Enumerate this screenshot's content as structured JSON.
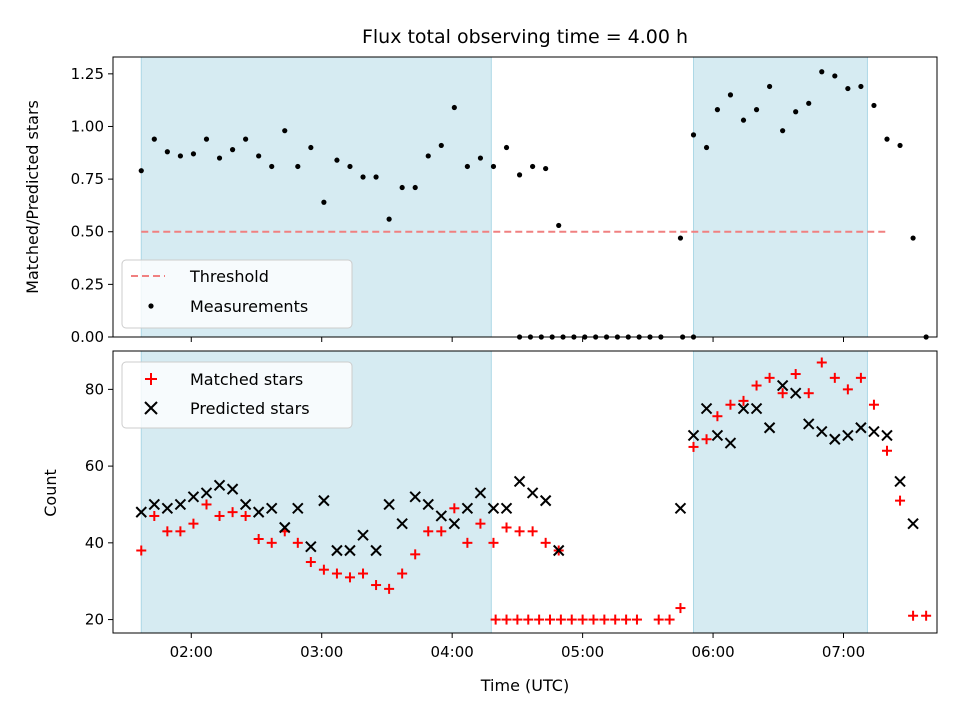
{
  "chart_data": [
    {
      "type": "scatter",
      "title": "Flux total observing time = 4.00 h",
      "ylabel": "Matched/Predicted stars",
      "xlabel": "",
      "xlim": [
        "01:24",
        "07:43"
      ],
      "ylim": [
        0,
        1.33
      ],
      "x_ticks": [
        "02:00",
        "03:00",
        "04:00",
        "05:00",
        "06:00",
        "07:00"
      ],
      "y_ticks": [
        "0.00",
        "0.25",
        "0.50",
        "0.75",
        "1.00",
        "1.25"
      ],
      "shaded_intervals": [
        [
          "01:37",
          "04:18"
        ],
        [
          "05:51",
          "07:11"
        ]
      ],
      "legend_position": "lower-left",
      "threshold": {
        "name": "Threshold",
        "value": 0.5,
        "x_range": [
          "01:37",
          "07:21"
        ],
        "color": "#f08080"
      },
      "series": [
        {
          "name": "Measurements",
          "color": "#000000",
          "points": [
            [
              "01:37",
              0.79
            ],
            [
              "01:43",
              0.94
            ],
            [
              "01:49",
              0.88
            ],
            [
              "01:55",
              0.86
            ],
            [
              "02:01",
              0.87
            ],
            [
              "02:07",
              0.94
            ],
            [
              "02:13",
              0.85
            ],
            [
              "02:19",
              0.89
            ],
            [
              "02:25",
              0.94
            ],
            [
              "02:31",
              0.86
            ],
            [
              "02:37",
              0.81
            ],
            [
              "02:43",
              0.98
            ],
            [
              "02:49",
              0.81
            ],
            [
              "02:55",
              0.9
            ],
            [
              "03:01",
              0.64
            ],
            [
              "03:07",
              0.84
            ],
            [
              "03:13",
              0.81
            ],
            [
              "03:19",
              0.76
            ],
            [
              "03:25",
              0.76
            ],
            [
              "03:31",
              0.56
            ],
            [
              "03:37",
              0.71
            ],
            [
              "03:43",
              0.71
            ],
            [
              "03:49",
              0.86
            ],
            [
              "03:55",
              0.91
            ],
            [
              "04:01",
              1.09
            ],
            [
              "04:07",
              0.81
            ],
            [
              "04:13",
              0.85
            ],
            [
              "04:19",
              0.81
            ],
            [
              "04:25",
              0.9
            ],
            [
              "04:31",
              0.77
            ],
            [
              "04:37",
              0.81
            ],
            [
              "04:43",
              0.8
            ],
            [
              "04:49",
              0.53
            ],
            [
              "04:31",
              0.0
            ],
            [
              "04:36",
              0.0
            ],
            [
              "04:41",
              0.0
            ],
            [
              "04:46",
              0.0
            ],
            [
              "04:51",
              0.0
            ],
            [
              "04:56",
              0.0
            ],
            [
              "05:01",
              0.0
            ],
            [
              "05:06",
              0.0
            ],
            [
              "05:11",
              0.0
            ],
            [
              "05:16",
              0.0
            ],
            [
              "05:21",
              0.0
            ],
            [
              "05:26",
              0.0
            ],
            [
              "05:31",
              0.0
            ],
            [
              "05:36",
              0.0
            ],
            [
              "05:46",
              0.0
            ],
            [
              "05:51",
              0.0
            ],
            [
              "05:45",
              0.47
            ],
            [
              "05:51",
              0.96
            ],
            [
              "05:57",
              0.9
            ],
            [
              "06:02",
              1.08
            ],
            [
              "06:08",
              1.15
            ],
            [
              "06:14",
              1.03
            ],
            [
              "06:20",
              1.08
            ],
            [
              "06:26",
              1.19
            ],
            [
              "06:32",
              0.98
            ],
            [
              "06:38",
              1.07
            ],
            [
              "06:44",
              1.11
            ],
            [
              "06:50",
              1.26
            ],
            [
              "06:56",
              1.24
            ],
            [
              "07:02",
              1.18
            ],
            [
              "07:08",
              1.19
            ],
            [
              "07:14",
              1.1
            ],
            [
              "07:20",
              0.94
            ],
            [
              "07:26",
              0.91
            ],
            [
              "07:32",
              0.47
            ],
            [
              "07:38",
              0.0
            ]
          ]
        }
      ]
    },
    {
      "type": "scatter",
      "title": "",
      "ylabel": "Count",
      "xlabel": "Time (UTC)",
      "xlim": [
        "01:24",
        "07:43"
      ],
      "ylim": [
        16.5,
        90
      ],
      "x_ticks": [
        "02:00",
        "03:00",
        "04:00",
        "05:00",
        "06:00",
        "07:00"
      ],
      "y_ticks": [
        "20",
        "40",
        "60",
        "80"
      ],
      "shaded_intervals": [
        [
          "01:37",
          "04:18"
        ],
        [
          "05:51",
          "07:11"
        ]
      ],
      "legend_position": "upper-left",
      "series": [
        {
          "name": "Matched stars",
          "marker": "plus",
          "color": "#ff0000",
          "points": [
            [
              "01:37",
              38
            ],
            [
              "01:43",
              47
            ],
            [
              "01:49",
              43
            ],
            [
              "01:55",
              43
            ],
            [
              "02:01",
              45
            ],
            [
              "02:07",
              50
            ],
            [
              "02:13",
              47
            ],
            [
              "02:19",
              48
            ],
            [
              "02:25",
              47
            ],
            [
              "02:31",
              41
            ],
            [
              "02:37",
              40
            ],
            [
              "02:43",
              43
            ],
            [
              "02:49",
              40
            ],
            [
              "02:55",
              35
            ],
            [
              "03:01",
              33
            ],
            [
              "03:07",
              32
            ],
            [
              "03:13",
              31
            ],
            [
              "03:19",
              32
            ],
            [
              "03:25",
              29
            ],
            [
              "03:31",
              28
            ],
            [
              "03:37",
              32
            ],
            [
              "03:43",
              37
            ],
            [
              "03:49",
              43
            ],
            [
              "03:55",
              43
            ],
            [
              "04:01",
              49
            ],
            [
              "04:07",
              40
            ],
            [
              "04:13",
              45
            ],
            [
              "04:19",
              40
            ],
            [
              "04:25",
              44
            ],
            [
              "04:31",
              43
            ],
            [
              "04:37",
              43
            ],
            [
              "04:43",
              40
            ],
            [
              "04:49",
              38
            ],
            [
              "04:20",
              20
            ],
            [
              "04:25",
              20
            ],
            [
              "04:30",
              20
            ],
            [
              "04:35",
              20
            ],
            [
              "04:40",
              20
            ],
            [
              "04:45",
              20
            ],
            [
              "04:50",
              20
            ],
            [
              "04:55",
              20
            ],
            [
              "05:00",
              20
            ],
            [
              "05:05",
              20
            ],
            [
              "05:10",
              20
            ],
            [
              "05:15",
              20
            ],
            [
              "05:20",
              20
            ],
            [
              "05:25",
              20
            ],
            [
              "05:35",
              20
            ],
            [
              "05:40",
              20
            ],
            [
              "05:45",
              23
            ],
            [
              "05:51",
              65
            ],
            [
              "05:57",
              67
            ],
            [
              "06:02",
              73
            ],
            [
              "06:08",
              76
            ],
            [
              "06:14",
              77
            ],
            [
              "06:20",
              81
            ],
            [
              "06:26",
              83
            ],
            [
              "06:32",
              79
            ],
            [
              "06:38",
              84
            ],
            [
              "06:44",
              79
            ],
            [
              "06:50",
              87
            ],
            [
              "06:56",
              83
            ],
            [
              "07:02",
              80
            ],
            [
              "07:08",
              83
            ],
            [
              "07:14",
              76
            ],
            [
              "07:20",
              64
            ],
            [
              "07:26",
              51
            ],
            [
              "07:32",
              21
            ],
            [
              "07:38",
              21
            ]
          ]
        },
        {
          "name": "Predicted stars",
          "marker": "x",
          "color": "#000000",
          "points": [
            [
              "01:37",
              48
            ],
            [
              "01:43",
              50
            ],
            [
              "01:49",
              49
            ],
            [
              "01:55",
              50
            ],
            [
              "02:01",
              52
            ],
            [
              "02:07",
              53
            ],
            [
              "02:13",
              55
            ],
            [
              "02:19",
              54
            ],
            [
              "02:25",
              50
            ],
            [
              "02:31",
              48
            ],
            [
              "02:37",
              49
            ],
            [
              "02:43",
              44
            ],
            [
              "02:49",
              49
            ],
            [
              "02:55",
              39
            ],
            [
              "03:01",
              51
            ],
            [
              "03:07",
              38
            ],
            [
              "03:13",
              38
            ],
            [
              "03:19",
              42
            ],
            [
              "03:25",
              38
            ],
            [
              "03:31",
              50
            ],
            [
              "03:37",
              45
            ],
            [
              "03:43",
              52
            ],
            [
              "03:49",
              50
            ],
            [
              "03:55",
              47
            ],
            [
              "04:01",
              45
            ],
            [
              "04:07",
              49
            ],
            [
              "04:13",
              53
            ],
            [
              "04:19",
              49
            ],
            [
              "04:25",
              49
            ],
            [
              "04:31",
              56
            ],
            [
              "04:37",
              53
            ],
            [
              "04:43",
              51
            ],
            [
              "04:49",
              38
            ],
            [
              "05:45",
              49
            ],
            [
              "05:51",
              68
            ],
            [
              "05:57",
              75
            ],
            [
              "06:02",
              68
            ],
            [
              "06:08",
              66
            ],
            [
              "06:14",
              75
            ],
            [
              "06:20",
              75
            ],
            [
              "06:26",
              70
            ],
            [
              "06:32",
              81
            ],
            [
              "06:38",
              79
            ],
            [
              "06:44",
              71
            ],
            [
              "06:50",
              69
            ],
            [
              "06:56",
              67
            ],
            [
              "07:02",
              68
            ],
            [
              "07:08",
              70
            ],
            [
              "07:14",
              69
            ],
            [
              "07:20",
              68
            ],
            [
              "07:26",
              56
            ],
            [
              "07:32",
              45
            ]
          ]
        }
      ]
    }
  ]
}
